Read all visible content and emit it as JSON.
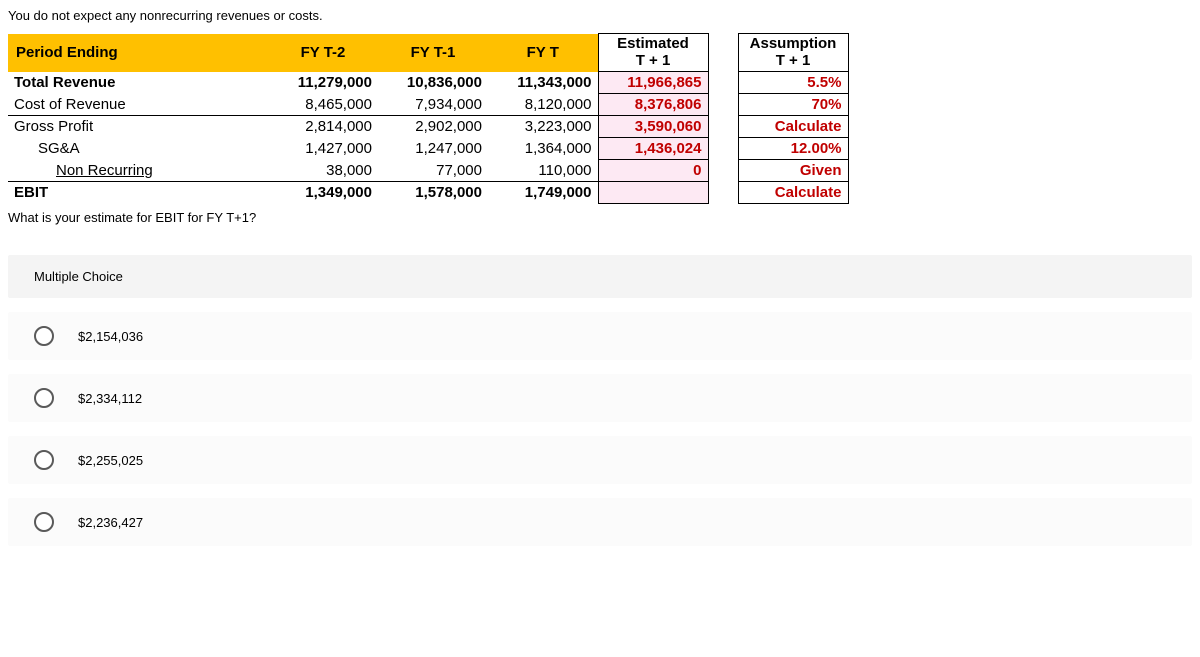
{
  "intro": "You do not expect any nonrecurring revenues or costs.",
  "headers": {
    "period": "Period Ending",
    "t2": "FY T-2",
    "t1": "FY T-1",
    "t0": "FY T",
    "est_line1": "Estimated",
    "est_line2": "T + 1",
    "assum_line1": "Assumption",
    "assum_line2": "T + 1"
  },
  "rows": {
    "total_rev": {
      "label": "Total Revenue",
      "t2": "11,279,000",
      "t1": "10,836,000",
      "t0": "11,343,000",
      "est": "11,966,865",
      "assum": "5.5%"
    },
    "cost_rev": {
      "label": "Cost of Revenue",
      "t2": "8,465,000",
      "t1": "7,934,000",
      "t0": "8,120,000",
      "est": "8,376,806",
      "assum": "70%"
    },
    "gross": {
      "label": "Gross Profit",
      "t2": "2,814,000",
      "t1": "2,902,000",
      "t0": "3,223,000",
      "est": "3,590,060",
      "assum": "Calculate"
    },
    "sga": {
      "label": "SG&A",
      "t2": "1,427,000",
      "t1": "1,247,000",
      "t0": "1,364,000",
      "est": "1,436,024",
      "assum": "12.00%"
    },
    "nonrec": {
      "label": "Non Recurring",
      "t2": "38,000",
      "t1": "77,000",
      "t0": "110,000",
      "est": "0",
      "assum": "Given"
    },
    "ebit": {
      "label": "EBIT",
      "t2": "1,349,000",
      "t1": "1,578,000",
      "t0": "1,749,000",
      "est": "",
      "assum": "Calculate"
    }
  },
  "question": "What is your estimate for EBIT for FY T+1?",
  "mc_label": "Multiple Choice",
  "choices": [
    "$2,154,036",
    "$2,334,112",
    "$2,255,025",
    "$2,236,427"
  ]
}
